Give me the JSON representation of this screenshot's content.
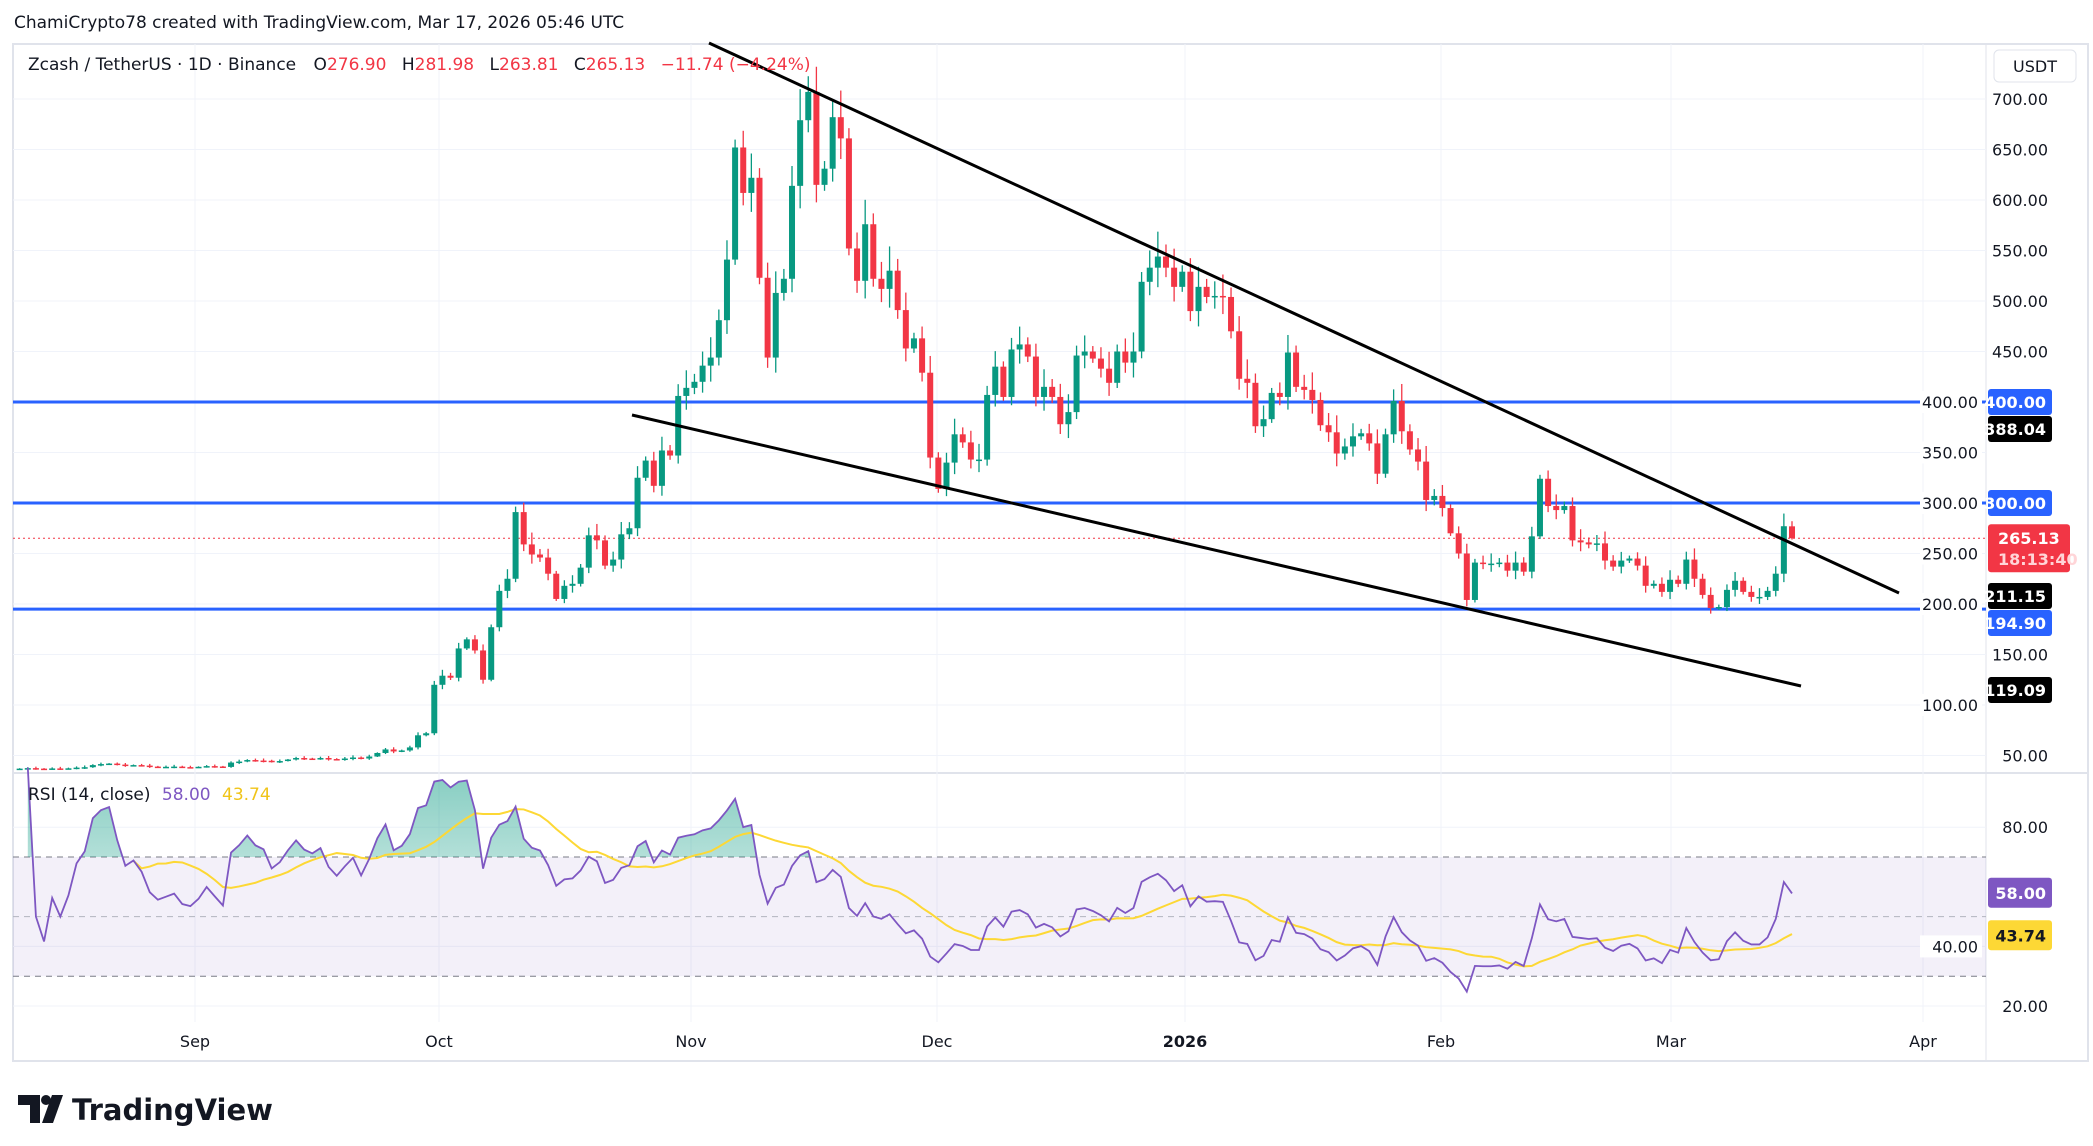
{
  "header": {
    "attribution": "ChamiCrypto78 created with TradingView.com, Mar 17, 2026 05:46 UTC"
  },
  "legend": {
    "symbol": "Zcash / TetherUS · 1D · Binance",
    "o_label": "O",
    "o": "276.90",
    "h_label": "H",
    "h": "281.98",
    "l_label": "L",
    "l": "263.81",
    "c_label": "C",
    "c": "265.13",
    "change": "−11.74 (−4.24%)"
  },
  "currency_button": "USDT",
  "rsi_legend": {
    "label": "RSI (14, close)",
    "value": "58.00",
    "ma": "43.74"
  },
  "logo": "TradingView",
  "colors": {
    "up": "#089981",
    "down": "#f23645",
    "level": "#2962ff",
    "trendline": "#000000",
    "rsi": "#7e57c2",
    "rsi_ma": "#fdd835",
    "rsi_band": "#7e57c2"
  },
  "chart_data": [
    {
      "type": "candlestick",
      "series_name": "Zcash / TetherUS",
      "last_candle": {
        "open": 276.9,
        "high": 281.98,
        "low": 263.81,
        "close": 265.13
      },
      "closes": [
        37,
        37.5,
        37,
        36.8,
        37.2,
        37,
        37.3,
        38,
        38.4,
        40.5,
        41.5,
        42,
        41,
        40,
        40.5,
        40,
        39,
        38.6,
        38.8,
        39,
        38.5,
        38.4,
        38.8,
        39.5,
        39.1,
        38.7,
        43,
        44,
        45.5,
        45,
        44.8,
        43.8,
        44.5,
        46,
        47.5,
        47,
        46.8,
        47.5,
        46.5,
        46,
        47,
        48,
        47,
        49,
        52.5,
        56,
        54,
        55,
        58,
        70,
        72,
        120,
        129,
        127,
        156,
        165,
        154,
        125,
        177,
        213,
        225,
        291,
        259,
        249,
        246,
        230,
        205,
        218,
        220,
        236,
        268,
        263,
        238,
        244,
        269,
        275,
        325,
        342,
        317,
        352,
        347,
        406,
        414,
        420,
        436,
        444,
        481,
        541,
        652,
        607,
        622,
        523,
        444,
        508,
        522,
        614,
        679,
        707,
        615,
        631,
        682,
        661,
        552,
        520,
        576,
        522,
        512,
        530,
        491,
        453,
        463,
        429,
        345,
        314,
        340,
        368,
        360,
        343,
        343,
        407,
        435,
        405,
        452,
        457,
        445,
        405,
        415,
        405,
        378,
        390,
        446,
        450,
        443,
        433,
        419,
        450,
        439,
        450,
        519,
        533,
        544,
        533,
        514,
        529,
        490,
        514,
        504,
        505,
        504,
        470,
        423,
        419,
        376,
        383,
        409,
        405,
        449,
        415,
        412,
        402,
        377,
        370,
        349,
        356,
        366,
        369,
        359,
        329,
        368,
        401,
        371,
        353,
        341,
        303,
        307,
        295,
        270,
        250,
        204,
        241,
        240,
        240,
        241,
        233,
        241,
        232,
        267,
        324,
        297,
        293,
        297,
        263,
        261,
        259,
        260,
        243,
        237,
        243,
        245,
        238,
        218,
        220,
        212,
        224,
        220,
        244,
        225,
        209,
        196,
        197,
        214,
        223,
        212,
        207,
        207,
        213,
        230,
        277,
        265.13
      ],
      "y_scale": "linear",
      "ylim": [
        30,
        750
      ],
      "y_ticks": [
        "700.00",
        "650.00",
        "600.00",
        "550.00",
        "500.00",
        "450.00",
        "400.00",
        "350.00",
        "300.00",
        "250.00",
        "200.00",
        "150.00",
        "100.00",
        "50.00"
      ],
      "x_ticks": [
        "Sep",
        "Oct",
        "Nov",
        "Dec",
        "2026",
        "Feb",
        "Mar",
        "Apr"
      ],
      "horizontal_levels": [
        {
          "value": 400.0,
          "label": "400.00"
        },
        {
          "value": 300.0,
          "label": "300.00"
        },
        {
          "value": 194.9,
          "label": "194.90"
        }
      ],
      "trendlines": [
        {
          "name": "upper",
          "end_label": "211.15"
        },
        {
          "name": "lower",
          "end_label": "119.09"
        }
      ],
      "trendline_tag_upper_start": "388.04",
      "current_price": {
        "value": 265.13,
        "label": "265.13",
        "countdown": "18:13:40"
      }
    },
    {
      "type": "line",
      "title": "RSI (14, close)",
      "ylim": [
        15,
        88
      ],
      "bands": [
        70,
        50,
        30
      ],
      "y_ticks": [
        "80.00",
        "40.00",
        "20.00"
      ],
      "last_rsi": 58.0,
      "last_ma": 43.74
    }
  ]
}
